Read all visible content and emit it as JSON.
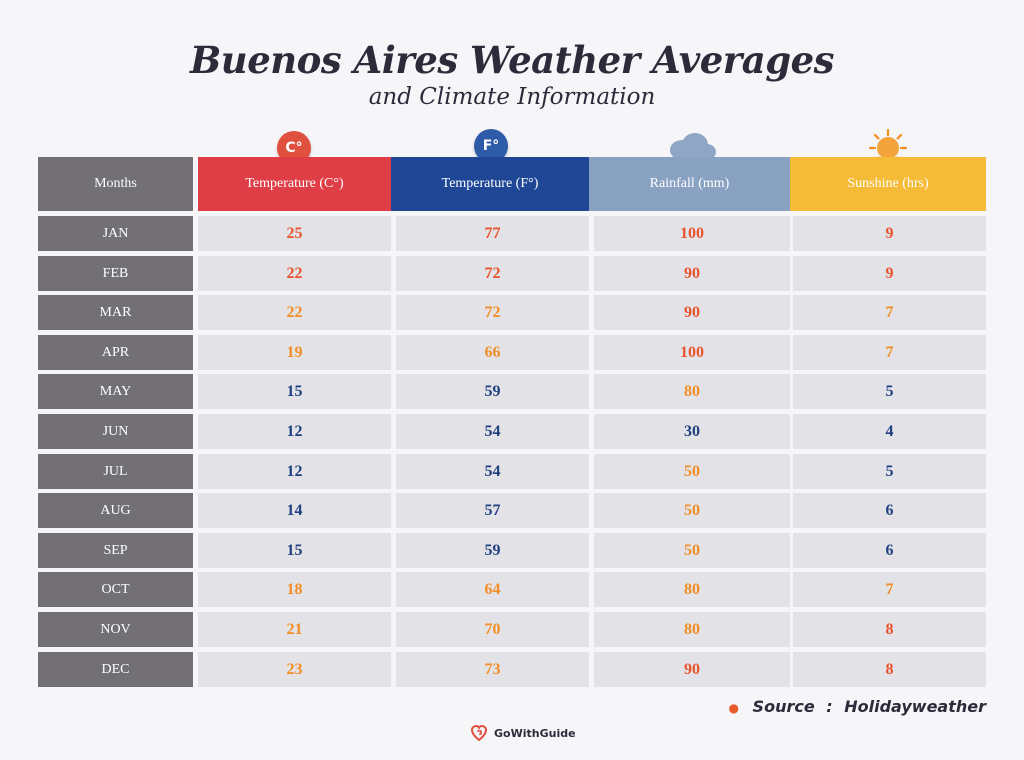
{
  "title": "Buenos Aires Weather Averages",
  "subtitle": "and Climate Information",
  "headers": {
    "months": "Months",
    "temp_c": "Temperature (C°)",
    "temp_f": "Temperature (F°)",
    "rainfall": "Rainfall (mm)",
    "sunshine": "Sunshine (hrs)"
  },
  "badges": {
    "c": "C°",
    "f": "F°"
  },
  "icons": {
    "temp_c": "celsius-badge-icon",
    "temp_f": "fahrenheit-badge-icon",
    "rainfall": "rain-cloud-icon",
    "sunshine": "sun-icon"
  },
  "colors": {
    "header_c": "#df3e46",
    "header_f": "#1f4796",
    "header_rain": "#8aa2c2",
    "header_sun": "#f6bb36",
    "month_bg": "#727074",
    "cell_bg": "#e3e2e6",
    "hot": "#e8532c",
    "warm": "#f28d24",
    "cool": "#1f4080"
  },
  "rows": [
    {
      "month": "JAN",
      "c": "25",
      "f": "77",
      "rain": "100",
      "sun": "9",
      "c_tone": "hot",
      "f_tone": "hot",
      "rain_tone": "hot",
      "sun_tone": "hot"
    },
    {
      "month": "FEB",
      "c": "22",
      "f": "72",
      "rain": "90",
      "sun": "9",
      "c_tone": "hot",
      "f_tone": "hot",
      "rain_tone": "hot",
      "sun_tone": "hot"
    },
    {
      "month": "MAR",
      "c": "22",
      "f": "72",
      "rain": "90",
      "sun": "7",
      "c_tone": "warm",
      "f_tone": "warm",
      "rain_tone": "hot",
      "sun_tone": "warm"
    },
    {
      "month": "APR",
      "c": "19",
      "f": "66",
      "rain": "100",
      "sun": "7",
      "c_tone": "warm",
      "f_tone": "warm",
      "rain_tone": "hot",
      "sun_tone": "warm"
    },
    {
      "month": "MAY",
      "c": "15",
      "f": "59",
      "rain": "80",
      "sun": "5",
      "c_tone": "cool",
      "f_tone": "cool",
      "rain_tone": "warm",
      "sun_tone": "cool"
    },
    {
      "month": "JUN",
      "c": "12",
      "f": "54",
      "rain": "30",
      "sun": "4",
      "c_tone": "cool",
      "f_tone": "cool",
      "rain_tone": "cool",
      "sun_tone": "cool"
    },
    {
      "month": "JUL",
      "c": "12",
      "f": "54",
      "rain": "50",
      "sun": "5",
      "c_tone": "cool",
      "f_tone": "cool",
      "rain_tone": "warm",
      "sun_tone": "cool"
    },
    {
      "month": "AUG",
      "c": "14",
      "f": "57",
      "rain": "50",
      "sun": "6",
      "c_tone": "cool",
      "f_tone": "cool",
      "rain_tone": "warm",
      "sun_tone": "cool"
    },
    {
      "month": "SEP",
      "c": "15",
      "f": "59",
      "rain": "50",
      "sun": "6",
      "c_tone": "cool",
      "f_tone": "cool",
      "rain_tone": "warm",
      "sun_tone": "cool"
    },
    {
      "month": "OCT",
      "c": "18",
      "f": "64",
      "rain": "80",
      "sun": "7",
      "c_tone": "warm",
      "f_tone": "warm",
      "rain_tone": "warm",
      "sun_tone": "warm"
    },
    {
      "month": "NOV",
      "c": "21",
      "f": "70",
      "rain": "80",
      "sun": "8",
      "c_tone": "warm",
      "f_tone": "warm",
      "rain_tone": "warm",
      "sun_tone": "hot"
    },
    {
      "month": "DEC",
      "c": "23",
      "f": "73",
      "rain": "90",
      "sun": "8",
      "c_tone": "warm",
      "f_tone": "warm",
      "rain_tone": "hot",
      "sun_tone": "hot"
    }
  ],
  "source": {
    "label": "Source",
    "separator": ":",
    "value": "Holidayweather"
  },
  "logo": {
    "text": "GoWithGuide"
  }
}
